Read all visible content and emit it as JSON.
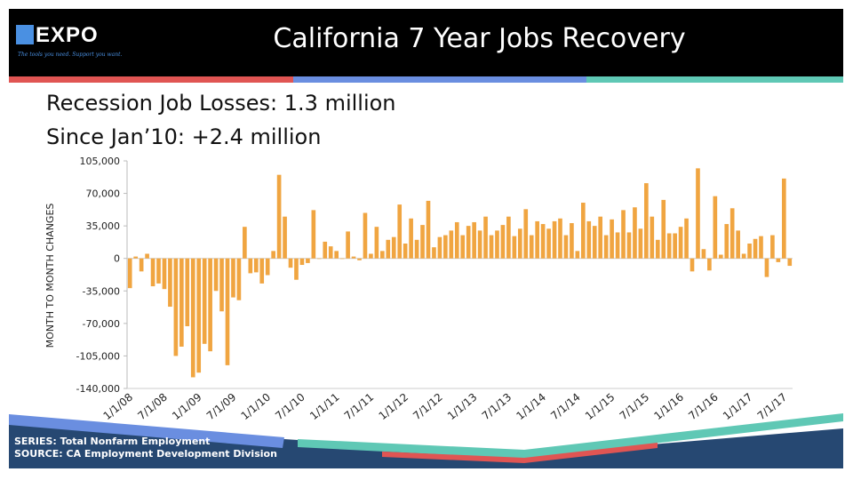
{
  "header": {
    "logo_text": "EXPO",
    "logo_tagline": "The tools you need. Support you want.",
    "title": "California 7 Year Jobs Recovery"
  },
  "subtitles": {
    "line1": "Recession Job Losses: 1.3 million",
    "line2": "Since Jan’10: +2.4 million"
  },
  "footer": {
    "series": "SERIES: Total Nonfarm Employment",
    "source": "SOURCE:  CA Employment Development Division"
  },
  "colors": {
    "bar": "#f0a541",
    "header_bg": "#000000",
    "stripe_red": "#e05553",
    "stripe_blue": "#6a8ee0",
    "stripe_teal": "#5fc8b5",
    "footer_navy": "#264872"
  },
  "chart_data": {
    "type": "bar",
    "title": "",
    "xlabel": "",
    "ylabel": "MONTH TO MONTH CHANGES",
    "ylim": [
      -140000,
      105000
    ],
    "yticks": [
      105000,
      70000,
      35000,
      0,
      -35000,
      -70000,
      -105000,
      -140000
    ],
    "ytick_labels": [
      "105,000",
      "70,000",
      "35,000",
      "0",
      "-35,000",
      "-70,000",
      "-105,000",
      "-140,000"
    ],
    "xtick_labels": [
      "1/1/08",
      "7/1/08",
      "1/1/09",
      "7/1/09",
      "1/1/10",
      "7/1/10",
      "1/1/11",
      "7/1/11",
      "1/1/12",
      "7/1/12",
      "1/1/13",
      "7/1/13",
      "1/1/14",
      "7/1/14",
      "1/1/15",
      "7/1/15",
      "1/1/16",
      "7/1/16",
      "1/1/17",
      "7/1/17"
    ],
    "start": "1/1/08",
    "grid": false,
    "series": [
      {
        "values": [
          -32000,
          2000,
          -14000,
          5000,
          -30000,
          -27000,
          -33000,
          -52000,
          -105000,
          -95000,
          -73000,
          -128000,
          -123000,
          -92000,
          -100000,
          -35000,
          -57000,
          -115000,
          -42000,
          -45000,
          34000,
          -16000,
          -15000,
          -27000,
          -18000,
          8000,
          90000,
          45000,
          -10000,
          -23000,
          -7000,
          -5000,
          52000,
          0,
          18000,
          13000,
          8000,
          0,
          29000,
          2000,
          -2000,
          49000,
          5000,
          34000,
          8000,
          20000,
          23000,
          58000,
          16000,
          43000,
          20000,
          36000,
          62000,
          12000,
          23000,
          25000,
          30000,
          39000,
          25000,
          35000,
          39000,
          30000,
          45000,
          25000,
          30000,
          36000,
          45000,
          24000,
          32000,
          53000,
          25000,
          40000,
          37000,
          32000,
          40000,
          43000,
          25000,
          38000,
          8000,
          60000,
          40000,
          35000,
          45000,
          25000,
          42000,
          28000,
          52000,
          28000,
          55000,
          32000,
          81000,
          45000,
          20000,
          63000,
          27000,
          27000,
          34000,
          43000,
          -14000,
          97000,
          10000,
          -13000,
          67000,
          4000,
          37000,
          54000,
          30000,
          5000,
          16000,
          21000,
          24000,
          -20000,
          25000,
          -4000,
          86000,
          -8000
        ]
      }
    ]
  }
}
